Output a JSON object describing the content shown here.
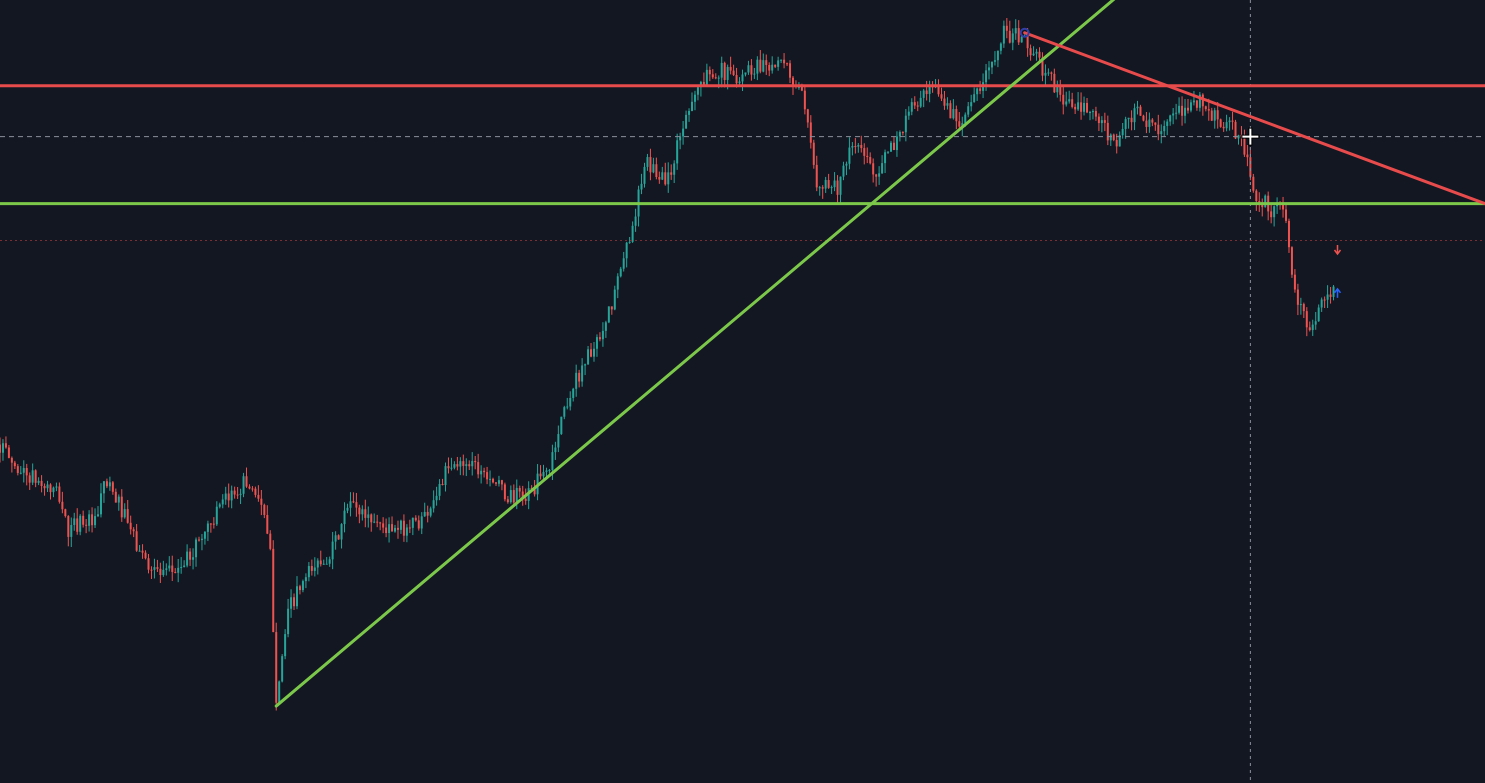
{
  "theme": {
    "background": "#131722",
    "candle_up": "#26a69a",
    "candle_down": "#ef5350",
    "resistance_color": "#e84b4b",
    "support_color": "#7cc84a",
    "crosshair_color": "#8a8f9c",
    "marker_down_color": "#ef5350",
    "marker_up_color": "#2962ff",
    "pivot_color": "#2f3fa8"
  },
  "chart_data": {
    "type": "candlestick",
    "note_unit": "relative price",
    "y_range": [
      0,
      100
    ],
    "x_range": [
      0,
      100
    ],
    "price_path": [
      [
        0.0,
        44
      ],
      [
        1.0,
        41
      ],
      [
        2.5,
        39
      ],
      [
        4.0,
        37
      ],
      [
        4.6,
        32
      ],
      [
        5.5,
        34
      ],
      [
        6.5,
        33
      ],
      [
        7.0,
        39
      ],
      [
        8.0,
        36
      ],
      [
        9.5,
        29
      ],
      [
        11.0,
        26
      ],
      [
        12.5,
        28
      ],
      [
        14.0,
        33
      ],
      [
        15.5,
        37
      ],
      [
        16.5,
        39
      ],
      [
        17.5,
        37
      ],
      [
        18.2,
        29
      ],
      [
        18.6,
        10
      ],
      [
        19.5,
        22
      ],
      [
        21.0,
        27
      ],
      [
        22.5,
        30
      ],
      [
        23.5,
        36
      ],
      [
        25.0,
        34
      ],
      [
        26.5,
        32
      ],
      [
        28.5,
        34
      ],
      [
        30.0,
        40
      ],
      [
        31.5,
        42
      ],
      [
        33.0,
        40
      ],
      [
        34.0,
        37
      ],
      [
        35.5,
        37
      ],
      [
        37.0,
        41
      ],
      [
        38.0,
        49
      ],
      [
        39.5,
        56
      ],
      [
        40.5,
        58
      ],
      [
        42.0,
        69
      ],
      [
        43.5,
        82
      ],
      [
        45.0,
        80
      ],
      [
        46.5,
        91
      ],
      [
        48.0,
        95
      ],
      [
        49.5,
        94
      ],
      [
        51.5,
        96
      ],
      [
        53.0,
        95
      ],
      [
        54.0,
        91
      ],
      [
        55.0,
        80
      ],
      [
        56.5,
        79
      ],
      [
        57.5,
        85
      ],
      [
        59.0,
        81
      ],
      [
        60.0,
        84
      ],
      [
        61.5,
        90
      ],
      [
        63.0,
        92
      ],
      [
        64.5,
        88
      ],
      [
        66.0,
        92
      ],
      [
        67.5,
        100
      ],
      [
        69.0,
        99
      ],
      [
        70.5,
        94
      ],
      [
        72.0,
        90
      ],
      [
        73.5,
        89
      ],
      [
        75.0,
        85
      ],
      [
        76.5,
        89
      ],
      [
        77.5,
        87
      ],
      [
        79.0,
        88
      ],
      [
        80.5,
        91
      ],
      [
        82.0,
        88
      ],
      [
        83.5,
        86
      ],
      [
        84.5,
        78
      ],
      [
        85.5,
        76
      ],
      [
        86.5,
        76
      ],
      [
        87.2,
        64
      ],
      [
        88.0,
        60
      ],
      [
        89.0,
        63
      ],
      [
        90.0,
        66
      ]
    ],
    "drawings": {
      "horizontal_resistance": {
        "price": 92.7
      },
      "horizontal_support": {
        "price": 76.7
      },
      "ascending_trendline": {
        "from": [
          18.6,
          8.5
        ],
        "to": [
          77.1,
          108
        ]
      },
      "descending_trendline": {
        "from": [
          69.0,
          99.9
        ],
        "to": [
          100.0,
          76.7
        ]
      },
      "crosshair": {
        "x": 84.2,
        "y": 85.8
      },
      "last_price_line": {
        "price": 71.7
      }
    },
    "grid": false,
    "legend": "none"
  },
  "icons": {
    "pivot": "pivot-circle-icon",
    "sell_marker": "arrow-down-icon",
    "buy_marker": "arrow-up-icon",
    "cursor": "crosshair-cursor-icon"
  }
}
